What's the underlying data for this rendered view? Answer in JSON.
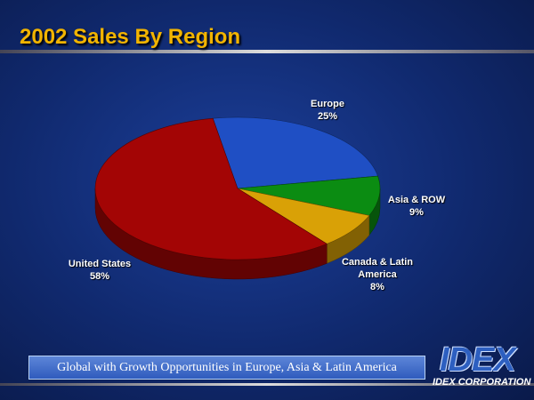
{
  "chart_data": {
    "type": "pie3d",
    "title": "2002 Sales By Region",
    "categories": [
      "Europe",
      "Asia & ROW",
      "Canada & Latin America",
      "United States"
    ],
    "values": [
      25,
      9,
      8,
      58
    ],
    "value_labels": [
      "25%",
      "9%",
      "8%",
      "58%"
    ],
    "colors": [
      "#1f4fc4",
      "#0b8c12",
      "#d9a106",
      "#a30505"
    ]
  },
  "banner": "Global with Growth Opportunities in Europe, Asia & Latin America",
  "logo": {
    "mark": "IDEX",
    "name": "IDEX CORPORATION"
  }
}
